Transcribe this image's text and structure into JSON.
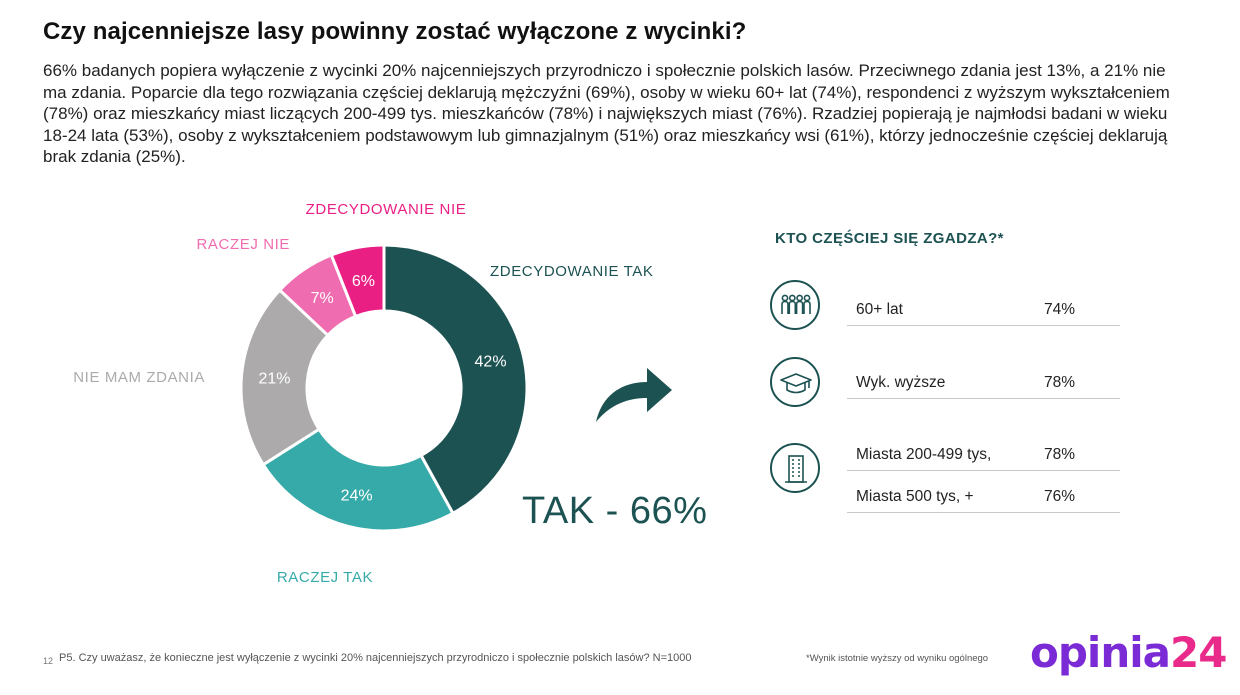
{
  "title": "Czy najcenniejsze lasy powinny zostać wyłączone z wycinki?",
  "intro": "66% badanych popiera wyłączenie z wycinki 20% najcenniejszych przyrodniczo i społecznie polskich lasów. Przeciwnego zdania jest 13%, a 21% nie ma zdania. Poparcie dla tego rozwiązania częściej deklarują mężczyźni (69%), osoby w wieku 60+ lat (74%), respondenci z wyższym wykształceniem (78%) oraz mieszkańcy miast liczących 200-499 tys. mieszkańców (78%) i największych miast (76%). Rzadziej popierają je najmłodsi badani w wieku 18-24 lata (53%), osoby z wykształceniem podstawowym lub gimnazjalnym (51%) oraz mieszkańcy wsi (61%), którzy jednocześnie częściej deklarują brak zdania (25%).",
  "chart_data": {
    "type": "pie",
    "subtype": "donut",
    "categories": [
      "ZDECYDOWANIE TAK",
      "RACZEJ TAK",
      "NIE MAM ZDANIA",
      "RACZEJ NIE",
      "ZDECYDOWANIE NIE"
    ],
    "values": [
      42,
      24,
      21,
      7,
      6
    ],
    "value_labels": [
      "42%",
      "24%",
      "21%",
      "7%",
      "6%"
    ],
    "colors": [
      "#1d5253",
      "#36aaa8",
      "#acaaaa",
      "#f06cb0",
      "#ea1f84"
    ],
    "label_colors": [
      "#1d5253",
      "#36aaa8",
      "#acaaaa",
      "#f06cb0",
      "#ea1f84"
    ],
    "total_label": "TAK - 66%"
  },
  "side": {
    "title": "KTO CZĘŚCIEJ SIĘ ZGADZA?*",
    "icons": [
      "people-icon",
      "graduation-cap-icon",
      "building-icon"
    ],
    "rows": [
      {
        "label": "60+ lat",
        "value": "74%"
      },
      {
        "label": "Wyk. wyższe",
        "value": "78%"
      },
      {
        "label": "Miasta 200-499 tys,",
        "value": "78%"
      },
      {
        "label": "Miasta 500 tys, +",
        "value": "76%"
      }
    ]
  },
  "footer": {
    "page_number": "12",
    "question": "P5. Czy uważasz, że konieczne jest wyłączenie z wycinki 20% najcenniejszych przyrodniczo i społecznie polskich lasów? N=1000",
    "significance_note": "*Wynik istotnie wyższy od wyniku ogólnego",
    "logo_part1": "opinia",
    "logo_part2": "24"
  },
  "colors": {
    "accent": "#1d5253",
    "brand_purple": "#7b2bd6",
    "brand_pink": "#ea2a8a"
  }
}
